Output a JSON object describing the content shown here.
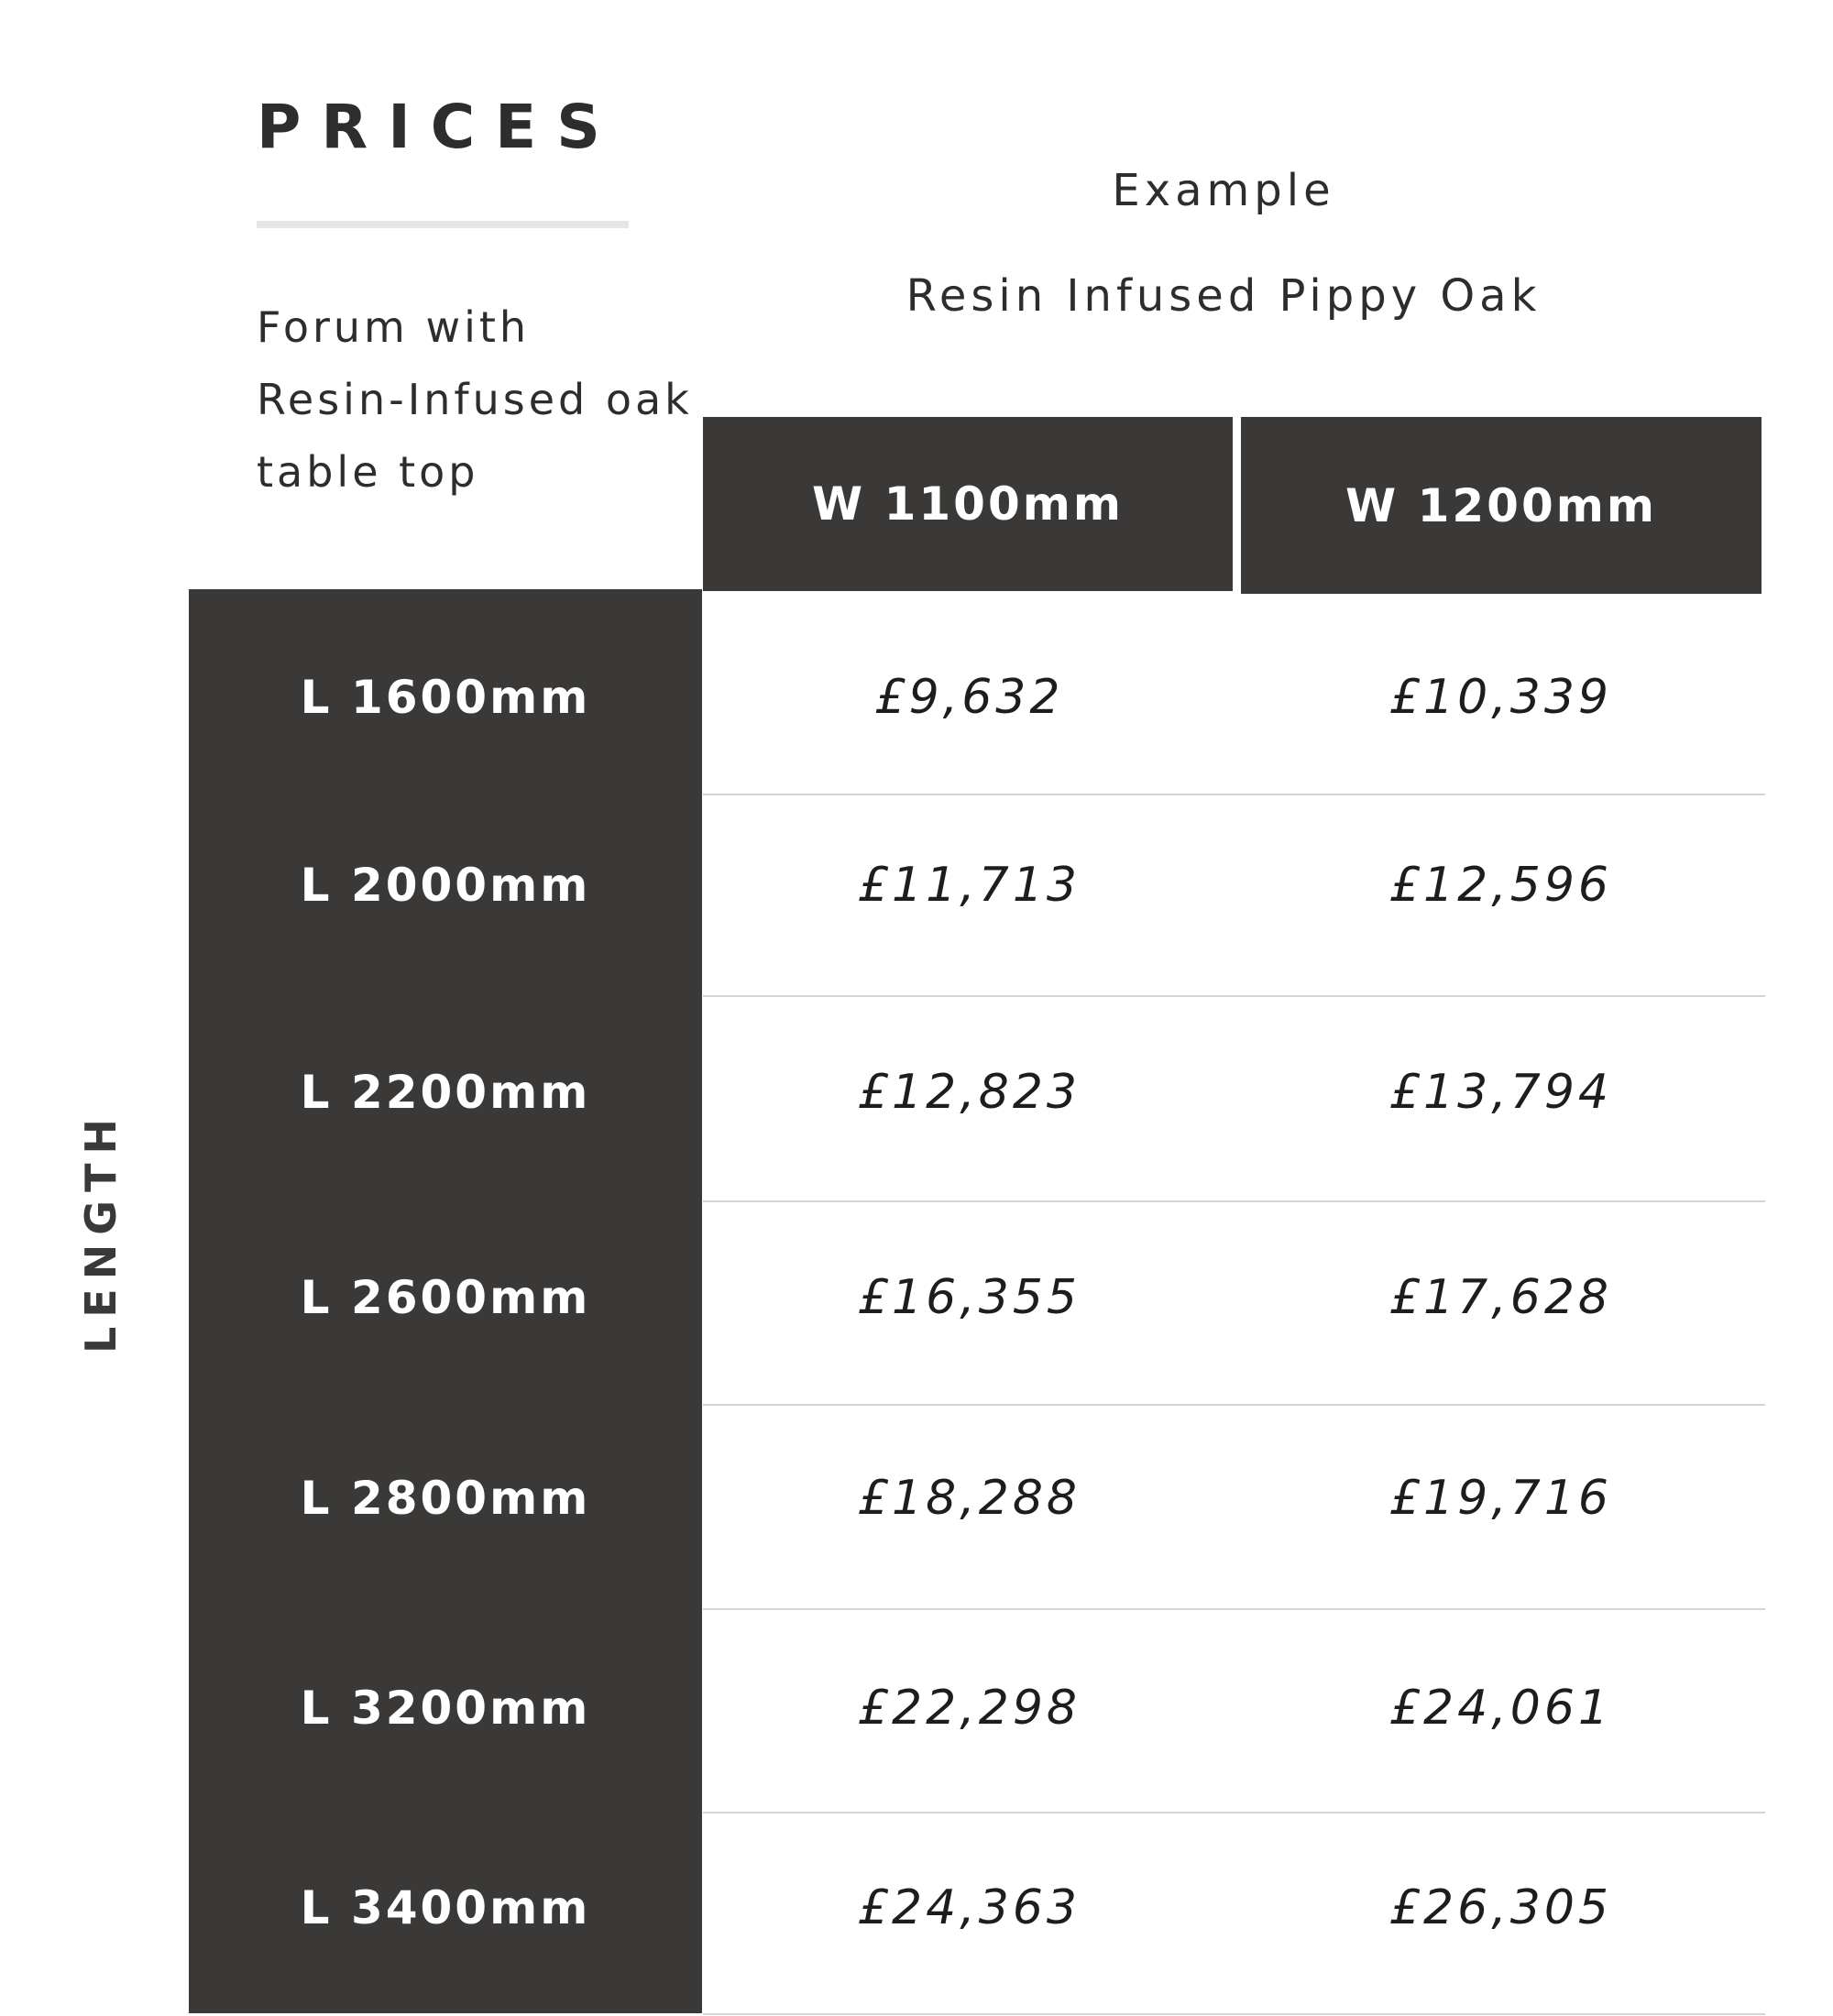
{
  "header": {
    "title": "PRICES",
    "description_lines": [
      "Forum with",
      "Resin-Infused oak",
      "table top"
    ],
    "example_label": "Example",
    "material": "Resin Infused Pippy Oak",
    "axis_label": "LENGTH"
  },
  "columns": [
    "W 1100mm",
    "W 1200mm"
  ],
  "rows": [
    {
      "length": "L 1600mm",
      "prices": [
        "£9,632",
        "£10,339"
      ]
    },
    {
      "length": "L 2000mm",
      "prices": [
        "£11,713",
        "£12,596"
      ]
    },
    {
      "length": "L 2200mm",
      "prices": [
        "£12,823",
        "£13,794"
      ]
    },
    {
      "length": "L 2600mm",
      "prices": [
        "£16,355",
        "£17,628"
      ]
    },
    {
      "length": "L 2800mm",
      "prices": [
        "£18,288",
        "£19,716"
      ]
    },
    {
      "length": "L 3200mm",
      "prices": [
        "£22,298",
        "£24,061"
      ]
    },
    {
      "length": "L 3400mm",
      "prices": [
        "£24,363",
        "£26,305"
      ]
    }
  ],
  "colors": {
    "dark": "#3a3938",
    "rule": "#e6e6e6",
    "divider": "#d4d4d4"
  }
}
